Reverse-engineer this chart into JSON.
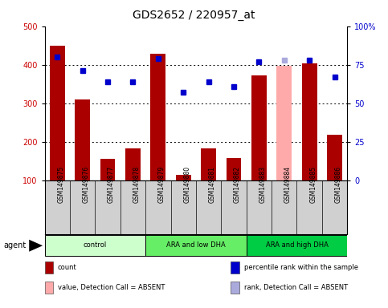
{
  "title": "GDS2652 / 220957_at",
  "samples": [
    "GSM149875",
    "GSM149876",
    "GSM149877",
    "GSM149878",
    "GSM149879",
    "GSM149880",
    "GSM149881",
    "GSM149882",
    "GSM149883",
    "GSM149884",
    "GSM149885",
    "GSM149886"
  ],
  "bar_values": [
    450,
    310,
    155,
    183,
    428,
    113,
    183,
    157,
    373,
    398,
    403,
    217
  ],
  "bar_colors": [
    "#aa0000",
    "#aa0000",
    "#aa0000",
    "#aa0000",
    "#aa0000",
    "#aa0000",
    "#aa0000",
    "#aa0000",
    "#aa0000",
    "#ffaaaa",
    "#aa0000",
    "#aa0000"
  ],
  "rank_values": [
    80,
    71,
    64,
    64,
    79,
    57,
    64,
    61,
    77,
    78,
    78,
    67
  ],
  "rank_colors": [
    "#0000cc",
    "#0000cc",
    "#0000cc",
    "#0000cc",
    "#0000cc",
    "#0000cc",
    "#0000cc",
    "#0000cc",
    "#0000cc",
    "#aaaadd",
    "#0000cc",
    "#0000cc"
  ],
  "ylim_left": [
    100,
    500
  ],
  "ylim_right": [
    0,
    100
  ],
  "yticks_left": [
    100,
    200,
    300,
    400,
    500
  ],
  "yticks_right": [
    0,
    25,
    50,
    75,
    100
  ],
  "ytick_labels_right": [
    "0",
    "25",
    "50",
    "75",
    "100%"
  ],
  "groups": [
    {
      "label": "control",
      "start": 0,
      "end": 3,
      "color": "#ccffcc"
    },
    {
      "label": "ARA and low DHA",
      "start": 4,
      "end": 7,
      "color": "#66ee66"
    },
    {
      "label": "ARA and high DHA",
      "start": 8,
      "end": 11,
      "color": "#00cc44"
    }
  ],
  "agent_label": "agent",
  "legend_items": [
    {
      "color": "#aa0000",
      "label": "count"
    },
    {
      "color": "#0000cc",
      "label": "percentile rank within the sample"
    },
    {
      "color": "#ffaaaa",
      "label": "value, Detection Call = ABSENT"
    },
    {
      "color": "#aaaadd",
      "label": "rank, Detection Call = ABSENT"
    }
  ],
  "bg_color": "#ffffff",
  "panel_bg": "#d0d0d0",
  "title_fontsize": 10,
  "tick_fontsize": 7,
  "left_color": "#cc0000",
  "right_color": "#0000cc"
}
